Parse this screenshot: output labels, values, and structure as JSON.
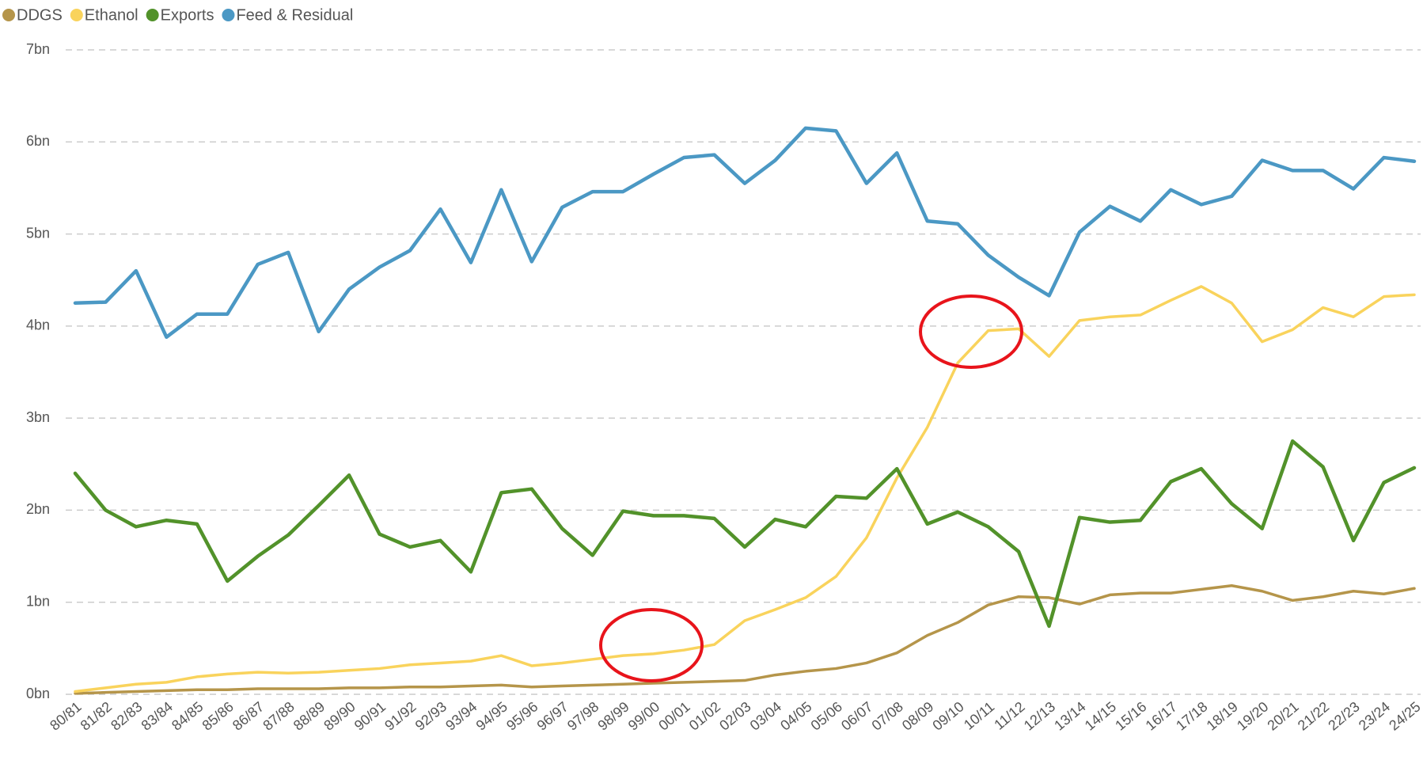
{
  "chart_data": {
    "type": "line",
    "categories": [
      "80/81",
      "81/82",
      "82/83",
      "83/84",
      "84/85",
      "85/86",
      "86/87",
      "87/88",
      "88/89",
      "89/90",
      "90/91",
      "91/92",
      "92/93",
      "93/94",
      "94/95",
      "95/96",
      "96/97",
      "97/98",
      "98/99",
      "99/00",
      "00/01",
      "01/02",
      "02/03",
      "03/04",
      "04/05",
      "05/06",
      "06/07",
      "07/08",
      "08/09",
      "09/10",
      "10/11",
      "11/12",
      "12/13",
      "13/14",
      "14/15",
      "15/16",
      "16/17",
      "17/18",
      "18/19",
      "19/20",
      "20/21",
      "21/22",
      "22/23",
      "23/24",
      "24/25"
    ],
    "series": [
      {
        "name": "DDGS",
        "color": "#b5954a",
        "values": [
          0.01,
          0.02,
          0.03,
          0.04,
          0.05,
          0.05,
          0.06,
          0.06,
          0.06,
          0.07,
          0.07,
          0.08,
          0.08,
          0.09,
          0.1,
          0.08,
          0.09,
          0.1,
          0.11,
          0.12,
          0.13,
          0.14,
          0.15,
          0.21,
          0.25,
          0.28,
          0.34,
          0.45,
          0.64,
          0.78,
          0.97,
          1.06,
          1.05,
          0.98,
          1.08,
          1.1,
          1.1,
          1.14,
          1.18,
          1.12,
          1.02,
          1.06,
          1.12,
          1.09,
          1.15
        ]
      },
      {
        "name": "Ethanol",
        "color": "#f9d35c",
        "values": [
          0.03,
          0.07,
          0.11,
          0.13,
          0.19,
          0.22,
          0.24,
          0.23,
          0.24,
          0.26,
          0.28,
          0.32,
          0.34,
          0.36,
          0.42,
          0.31,
          0.34,
          0.38,
          0.42,
          0.44,
          0.48,
          0.54,
          0.8,
          0.92,
          1.05,
          1.28,
          1.7,
          2.35,
          2.9,
          3.6,
          3.95,
          3.97,
          3.67,
          4.06,
          4.1,
          4.12,
          4.28,
          4.43,
          4.25,
          3.83,
          3.96,
          4.2,
          4.1,
          4.32,
          4.34
        ]
      },
      {
        "name": "Exports",
        "color": "#52922a",
        "values": [
          2.4,
          2.0,
          1.82,
          1.89,
          1.85,
          1.23,
          1.5,
          1.73,
          2.05,
          2.38,
          1.74,
          1.6,
          1.67,
          1.33,
          2.19,
          2.23,
          1.8,
          1.51,
          1.99,
          1.94,
          1.94,
          1.91,
          1.6,
          1.9,
          1.82,
          2.15,
          2.13,
          2.45,
          1.85,
          1.98,
          1.82,
          1.55,
          0.74,
          1.92,
          1.87,
          1.89,
          2.31,
          2.45,
          2.07,
          1.8,
          2.75,
          2.47,
          1.67,
          2.3,
          2.46
        ]
      },
      {
        "name": "Feed & Residual",
        "color": "#4b98c4",
        "values": [
          4.25,
          4.26,
          4.6,
          3.88,
          4.13,
          4.13,
          4.67,
          4.8,
          3.94,
          4.4,
          4.64,
          4.82,
          5.27,
          4.69,
          5.48,
          4.7,
          5.29,
          5.46,
          5.46,
          5.65,
          5.83,
          5.86,
          5.55,
          5.8,
          6.15,
          6.12,
          5.55,
          5.88,
          5.14,
          5.11,
          4.77,
          4.53,
          4.33,
          5.02,
          5.3,
          5.14,
          5.48,
          5.32,
          5.41,
          5.8,
          5.69,
          5.69,
          5.49,
          5.83,
          5.79
        ]
      }
    ],
    "ylim": [
      0,
      7
    ],
    "yticks": [
      {
        "value": 0,
        "label": "0bn"
      },
      {
        "value": 1,
        "label": "1bn"
      },
      {
        "value": 2,
        "label": "2bn"
      },
      {
        "value": 3,
        "label": "3bn"
      },
      {
        "value": 4,
        "label": "4bn"
      },
      {
        "value": 5,
        "label": "5bn"
      },
      {
        "value": 6,
        "label": "6bn"
      },
      {
        "value": 7,
        "label": "7bn"
      }
    ],
    "grid": true,
    "legend": "top"
  }
}
